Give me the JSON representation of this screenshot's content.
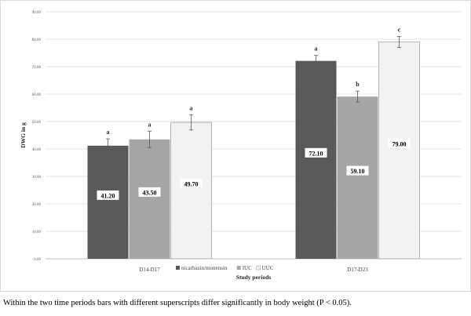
{
  "chart_data": {
    "type": "bar",
    "categories": [
      "D14-D17",
      "D17-D23"
    ],
    "series": [
      {
        "name": "nicarbazin/monensin",
        "values": [
          41.2,
          72.1
        ],
        "labels": [
          "41.20",
          "72.10"
        ],
        "letters": [
          "a",
          "a"
        ],
        "err": [
          2.5,
          2.0
        ],
        "color": "#595959"
      },
      {
        "name": "IUC",
        "values": [
          43.5,
          59.1
        ],
        "labels": [
          "43.50",
          "59.10"
        ],
        "letters": [
          "a",
          "b"
        ],
        "err": [
          3.0,
          2.0
        ],
        "color": "#a6a6a6"
      },
      {
        "name": "UUC",
        "values": [
          49.7,
          79.0
        ],
        "labels": [
          "49.70",
          "79.00"
        ],
        "letters": [
          "a",
          "c"
        ],
        "err": [
          2.8,
          2.0
        ],
        "color": "#f2f2f2"
      }
    ],
    "ylim": [
      0,
      90
    ],
    "yticks": [
      0,
      10,
      20,
      30,
      40,
      50,
      60,
      70,
      80,
      90
    ],
    "ytick_labels": [
      "0.00",
      "10.00",
      "20.00",
      "30.00",
      "40.00",
      "50.00",
      "60.00",
      "70.00",
      "80.00",
      "90.00"
    ],
    "ylabel": "DWG in g",
    "xlabel": "Study periods",
    "grid": true,
    "legend_position": "bottom"
  },
  "caption": "Within the two time periods bars with different superscripts differ significantly in body weight (P < 0.05)."
}
